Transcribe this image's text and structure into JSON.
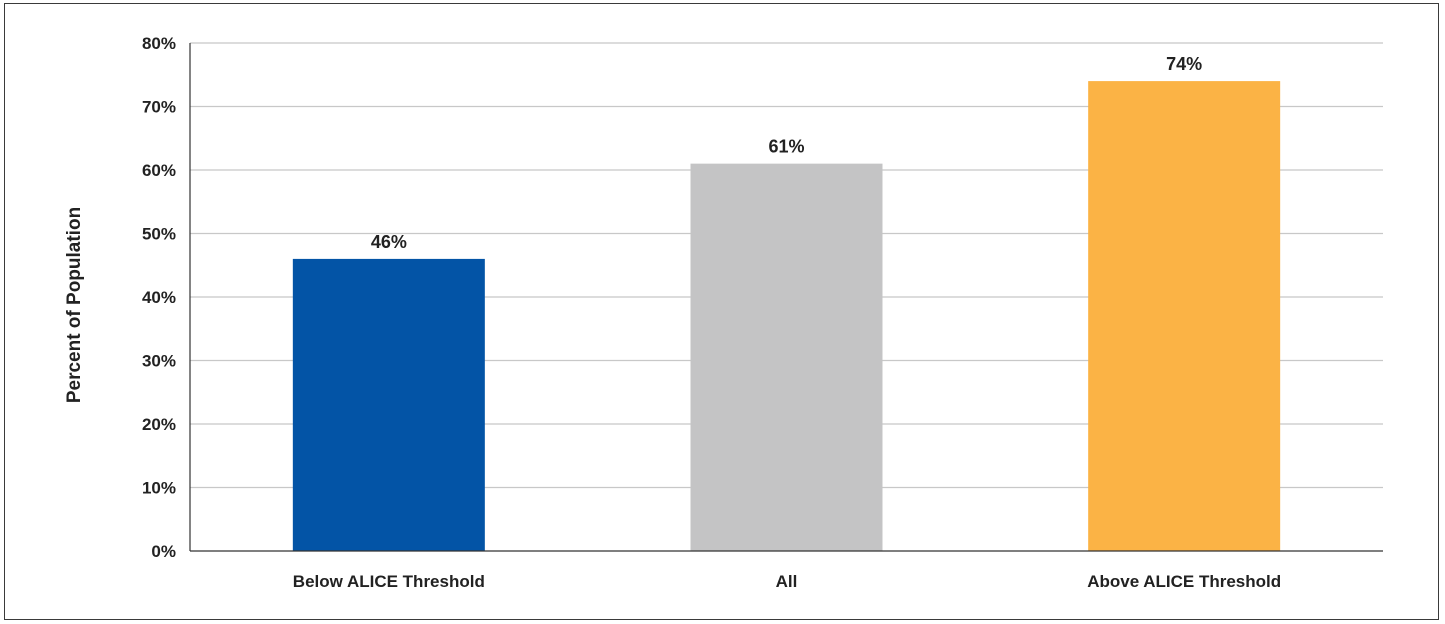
{
  "chart_data": {
    "type": "bar",
    "title": "",
    "xlabel": "",
    "ylabel": "Percent of Population",
    "categories": [
      "Below ALICE Threshold",
      "All",
      "Above ALICE Threshold"
    ],
    "values": [
      46,
      61,
      74
    ],
    "data_labels": [
      "46%",
      "61%",
      "74%"
    ],
    "bar_colors": [
      "#0354a6",
      "#c4c4c5",
      "#fbb345"
    ],
    "ylim": [
      0,
      80
    ],
    "yticks": [
      0,
      10,
      20,
      30,
      40,
      50,
      60,
      70,
      80
    ],
    "ytick_labels": [
      "0%",
      "10%",
      "20%",
      "30%",
      "40%",
      "50%",
      "60%",
      "70%",
      "80%"
    ],
    "grid": true,
    "legend": "none"
  }
}
